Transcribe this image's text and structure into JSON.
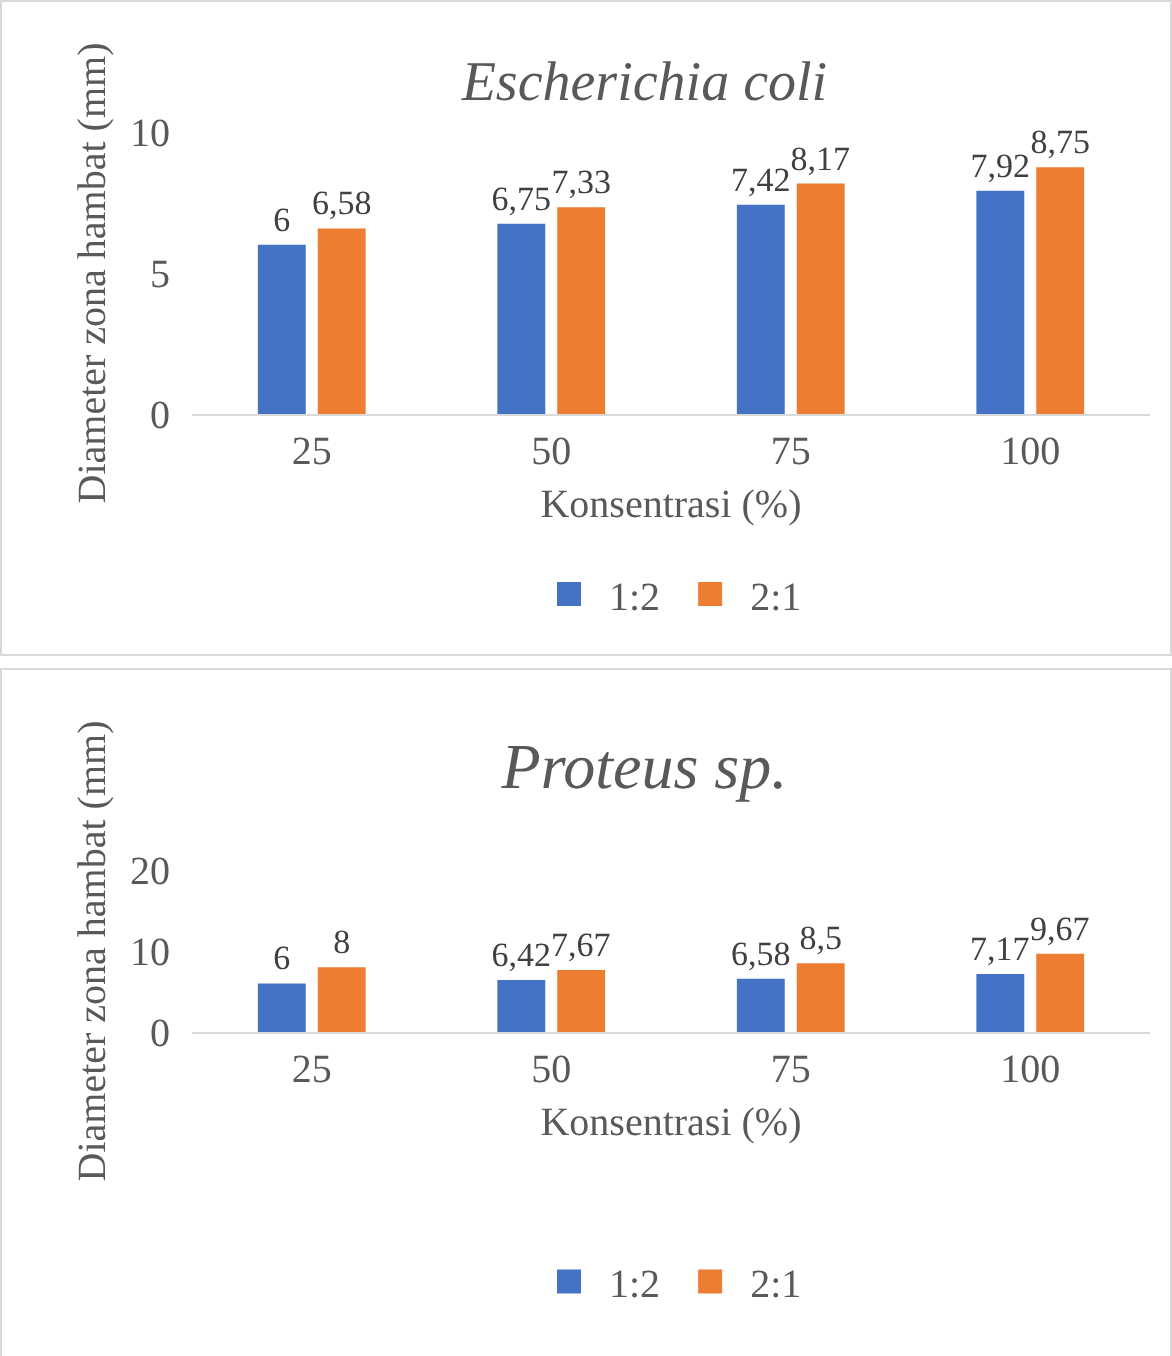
{
  "chart_data": [
    {
      "type": "bar",
      "title": "Escherichia coli",
      "xlabel": "Konsentrasi (%)",
      "ylabel": "Diameter zona hambat (mm)",
      "categories": [
        "25",
        "50",
        "75",
        "100"
      ],
      "series": [
        {
          "name": "1:2",
          "color": "#4472c4",
          "values": [
            6,
            6.75,
            7.42,
            7.92
          ],
          "value_labels": [
            "6",
            "6,75",
            "7,42",
            "7,92"
          ]
        },
        {
          "name": "2:1",
          "color": "#ed7d31",
          "values": [
            6.58,
            7.33,
            8.17,
            8.75
          ],
          "value_labels": [
            "6,58",
            "7,33",
            "8,17",
            "8,75"
          ]
        }
      ],
      "ylim": [
        0,
        10
      ],
      "yticks": [
        0,
        5,
        10
      ],
      "legend": "bottom"
    },
    {
      "type": "bar",
      "title": "Proteus sp.",
      "xlabel": "Konsentrasi (%)",
      "ylabel": "Diameter zona hambat (mm)",
      "categories": [
        "25",
        "50",
        "75",
        "100"
      ],
      "series": [
        {
          "name": "1:2",
          "color": "#4472c4",
          "values": [
            6,
            6.42,
            6.58,
            7.17
          ],
          "value_labels": [
            "6",
            "6,42",
            "6,58",
            "7,17"
          ]
        },
        {
          "name": "2:1",
          "color": "#ed7d31",
          "values": [
            8,
            7.67,
            8.5,
            9.67
          ],
          "value_labels": [
            "8",
            "7,67",
            "8,5",
            "9,67"
          ]
        }
      ],
      "ylim": [
        0,
        20
      ],
      "yticks": [
        0,
        10,
        20
      ],
      "legend": "bottom"
    }
  ]
}
